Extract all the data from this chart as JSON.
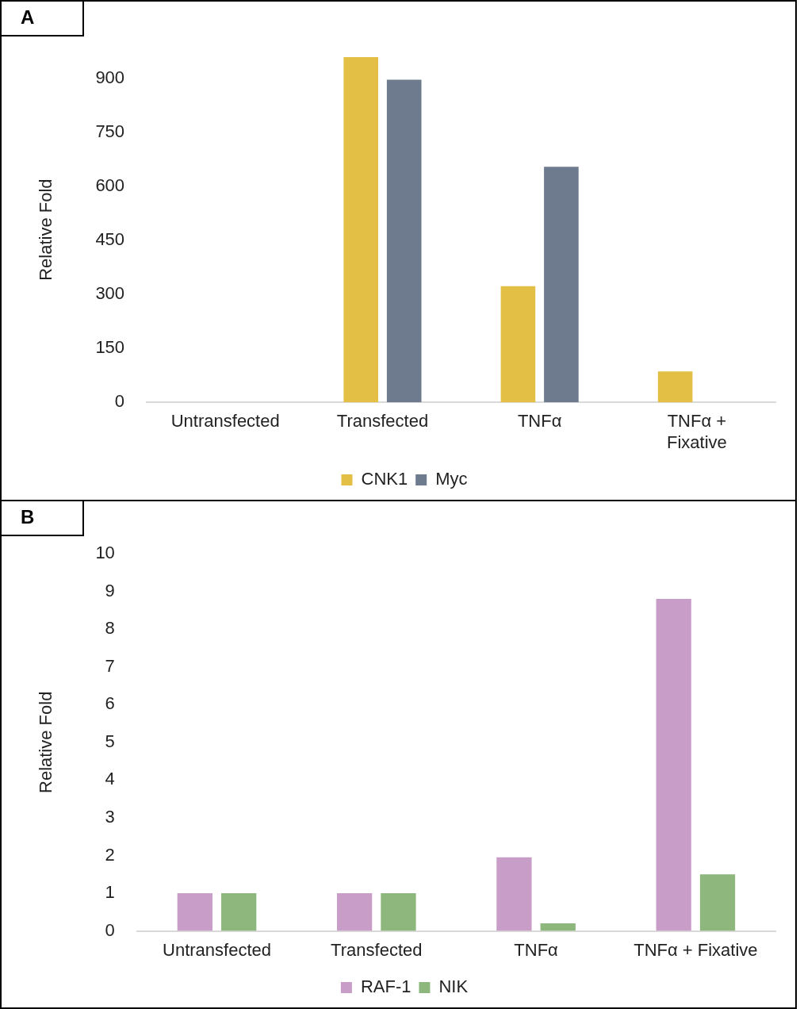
{
  "chart_data": [
    {
      "type": "bar",
      "title": "A",
      "ylabel": "Relative Fold",
      "categories": [
        "Untransfected",
        "Transfected",
        "TNFα",
        "TNFα + Fixative"
      ],
      "series": [
        {
          "name": "CNK1",
          "color": "#e3bf45",
          "values": [
            null,
            960,
            323,
            86
          ]
        },
        {
          "name": "Myc",
          "color": "#6e7a8e",
          "values": [
            null,
            897,
            655,
            0
          ]
        }
      ],
      "ylim": [
        0,
        960
      ],
      "yticks": [
        0,
        150,
        300,
        450,
        600,
        750,
        900
      ],
      "grid": false,
      "legend": "bottom"
    },
    {
      "type": "bar",
      "title": "B",
      "ylabel": "Relative Fold",
      "categories": [
        "Untransfected",
        "Transfected",
        "TNFα",
        "TNFα + Fixative"
      ],
      "series": [
        {
          "name": "RAF-1",
          "color": "#c89ec8",
          "values": [
            1,
            1,
            1.95,
            8.8
          ]
        },
        {
          "name": "NIK",
          "color": "#8db77c",
          "values": [
            1,
            1,
            0.2,
            1.5
          ]
        }
      ],
      "ylim": [
        0,
        10
      ],
      "yticks": [
        0,
        1,
        2,
        3,
        4,
        5,
        6,
        7,
        8,
        9,
        10
      ],
      "grid": false,
      "legend": "bottom"
    }
  ]
}
